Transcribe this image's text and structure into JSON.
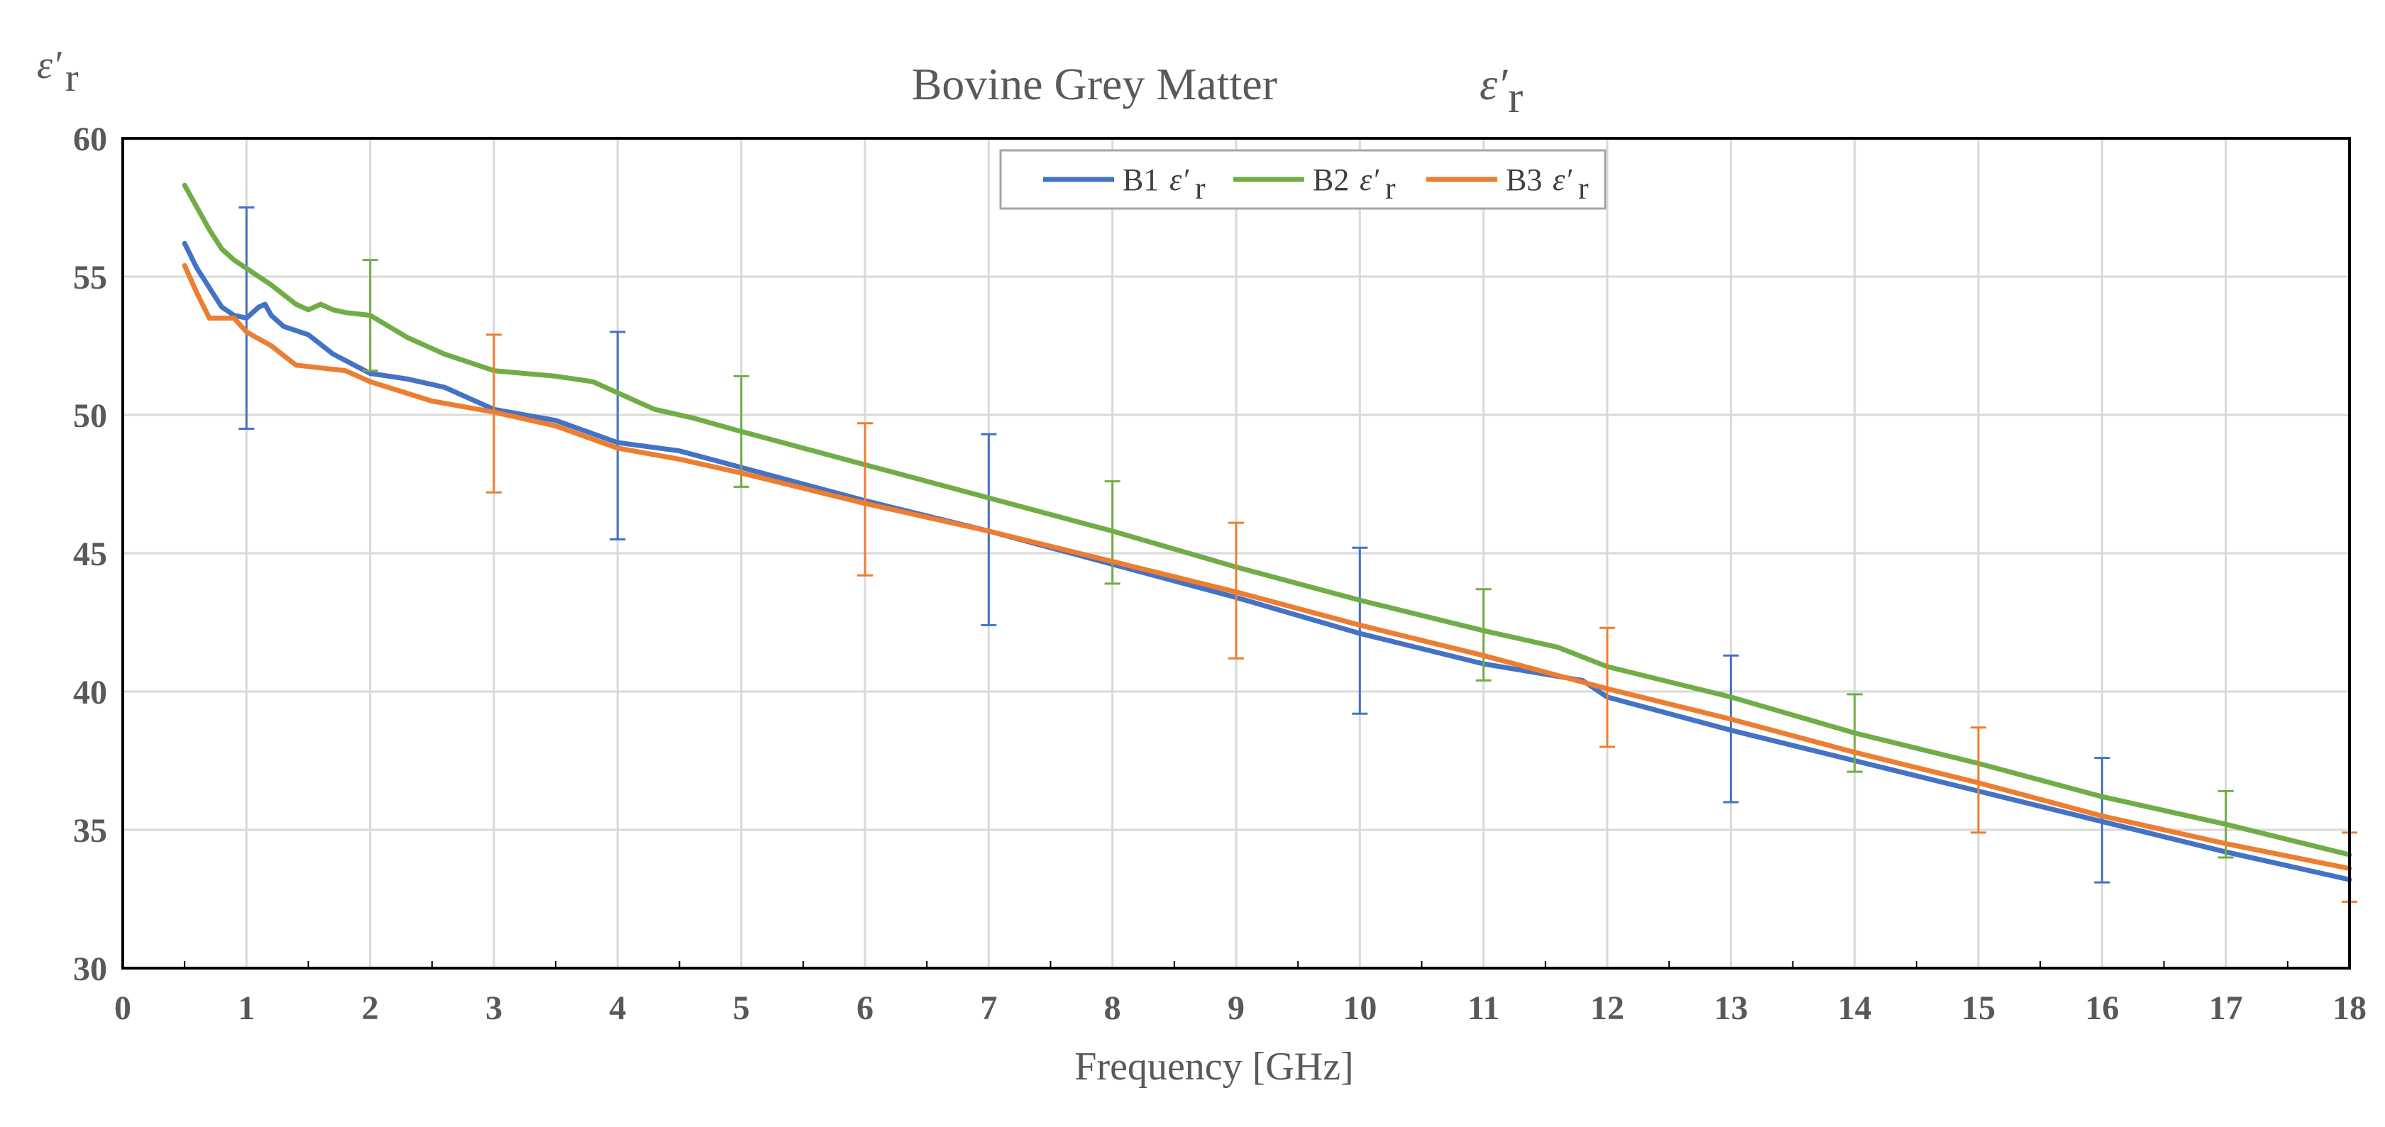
{
  "chart_data": {
    "type": "line",
    "title": "Bovine Grey Matter",
    "title_symbol": "ε′",
    "title_symbol_sub": "r",
    "xlabel": "Frequency [GHz]",
    "ylabel_symbol": "ε′",
    "ylabel_sub": "r",
    "xlim": [
      0,
      18
    ],
    "ylim": [
      30,
      60
    ],
    "xticks": [
      "0",
      "1",
      "2",
      "3",
      "4",
      "5",
      "6",
      "7",
      "8",
      "9",
      "10",
      "11",
      "12",
      "13",
      "14",
      "15",
      "16",
      "17",
      "18"
    ],
    "yticks": [
      "30",
      "35",
      "40",
      "45",
      "50",
      "55",
      "60"
    ],
    "grid": true,
    "legend_position": "top-center",
    "colors": {
      "B1": "#4472C4",
      "B2": "#70AD47",
      "B3": "#ED7D31",
      "grid": "#d9d9d9",
      "axis": "#000000"
    },
    "series": [
      {
        "name": "B1",
        "legend_label": "B1",
        "color": "#4472C4",
        "x": [
          0.5,
          0.6,
          0.7,
          0.8,
          0.9,
          1.0,
          1.1,
          1.15,
          1.2,
          1.3,
          1.5,
          1.7,
          2.0,
          2.3,
          2.6,
          3.0,
          3.5,
          4.0,
          4.5,
          5.0,
          6.0,
          7.0,
          8.0,
          9.0,
          10.0,
          11.0,
          11.8,
          12.0,
          13.0,
          14.0,
          15.0,
          16.0,
          17.0,
          18.0
        ],
        "y": [
          56.2,
          55.3,
          54.6,
          53.9,
          53.6,
          53.5,
          53.9,
          54.0,
          53.6,
          53.2,
          52.9,
          52.2,
          51.5,
          51.3,
          51.0,
          50.2,
          49.8,
          49.0,
          48.7,
          48.1,
          46.9,
          45.8,
          44.6,
          43.4,
          42.1,
          41.0,
          40.4,
          39.8,
          38.6,
          37.5,
          36.4,
          35.3,
          34.2,
          33.2
        ],
        "error_bars": [
          {
            "x": 1,
            "low": 49.5,
            "high": 57.5
          },
          {
            "x": 4,
            "low": 45.5,
            "high": 53.0
          },
          {
            "x": 7,
            "low": 42.4,
            "high": 49.3
          },
          {
            "x": 10,
            "low": 39.2,
            "high": 45.2
          },
          {
            "x": 13,
            "low": 36.0,
            "high": 41.3
          },
          {
            "x": 16,
            "low": 33.1,
            "high": 37.6
          }
        ]
      },
      {
        "name": "B2",
        "legend_label": "B2",
        "color": "#70AD47",
        "x": [
          0.5,
          0.6,
          0.7,
          0.8,
          0.9,
          1.0,
          1.2,
          1.4,
          1.5,
          1.6,
          1.7,
          1.8,
          2.0,
          2.3,
          2.6,
          3.0,
          3.5,
          3.8,
          4.0,
          4.3,
          4.6,
          5.0,
          5.5,
          6.0,
          7.0,
          8.0,
          9.0,
          10.0,
          11.0,
          11.6,
          12.0,
          13.0,
          14.0,
          15.0,
          16.0,
          17.0,
          18.0
        ],
        "y": [
          58.3,
          57.5,
          56.7,
          56.0,
          55.6,
          55.3,
          54.7,
          54.0,
          53.8,
          54.0,
          53.8,
          53.7,
          53.6,
          52.8,
          52.2,
          51.6,
          51.4,
          51.2,
          50.8,
          50.2,
          49.9,
          49.4,
          48.8,
          48.2,
          47.0,
          45.8,
          44.5,
          43.3,
          42.2,
          41.6,
          40.9,
          39.8,
          38.5,
          37.4,
          36.2,
          35.2,
          34.1
        ],
        "error_bars": [
          {
            "x": 2,
            "low": 51.6,
            "high": 55.6
          },
          {
            "x": 5,
            "low": 47.4,
            "high": 51.4
          },
          {
            "x": 8,
            "low": 43.9,
            "high": 47.6
          },
          {
            "x": 11,
            "low": 40.4,
            "high": 43.7
          },
          {
            "x": 14,
            "low": 37.1,
            "high": 39.9
          },
          {
            "x": 17,
            "low": 34.0,
            "high": 36.4
          }
        ]
      },
      {
        "name": "B3",
        "legend_label": "B3",
        "color": "#ED7D31",
        "x": [
          0.5,
          0.6,
          0.7,
          0.8,
          0.9,
          1.0,
          1.2,
          1.4,
          1.6,
          1.8,
          2.0,
          2.5,
          3.0,
          3.5,
          4.0,
          4.5,
          5.0,
          6.0,
          7.0,
          8.0,
          9.0,
          10.0,
          11.0,
          12.0,
          13.0,
          14.0,
          15.0,
          16.0,
          17.0,
          18.0
        ],
        "y": [
          55.4,
          54.4,
          53.5,
          53.5,
          53.5,
          53.0,
          52.5,
          51.8,
          51.7,
          51.6,
          51.2,
          50.5,
          50.1,
          49.6,
          48.8,
          48.4,
          47.9,
          46.8,
          45.8,
          44.7,
          43.6,
          42.4,
          41.3,
          40.1,
          39.0,
          37.8,
          36.7,
          35.5,
          34.5,
          33.6
        ],
        "error_bars": [
          {
            "x": 3,
            "low": 47.2,
            "high": 52.9
          },
          {
            "x": 6,
            "low": 44.2,
            "high": 49.7
          },
          {
            "x": 9,
            "low": 41.2,
            "high": 46.1
          },
          {
            "x": 12,
            "low": 38.0,
            "high": 42.3
          },
          {
            "x": 15,
            "low": 34.9,
            "high": 38.7
          },
          {
            "x": 18,
            "low": 32.4,
            "high": 34.9
          }
        ]
      }
    ]
  }
}
